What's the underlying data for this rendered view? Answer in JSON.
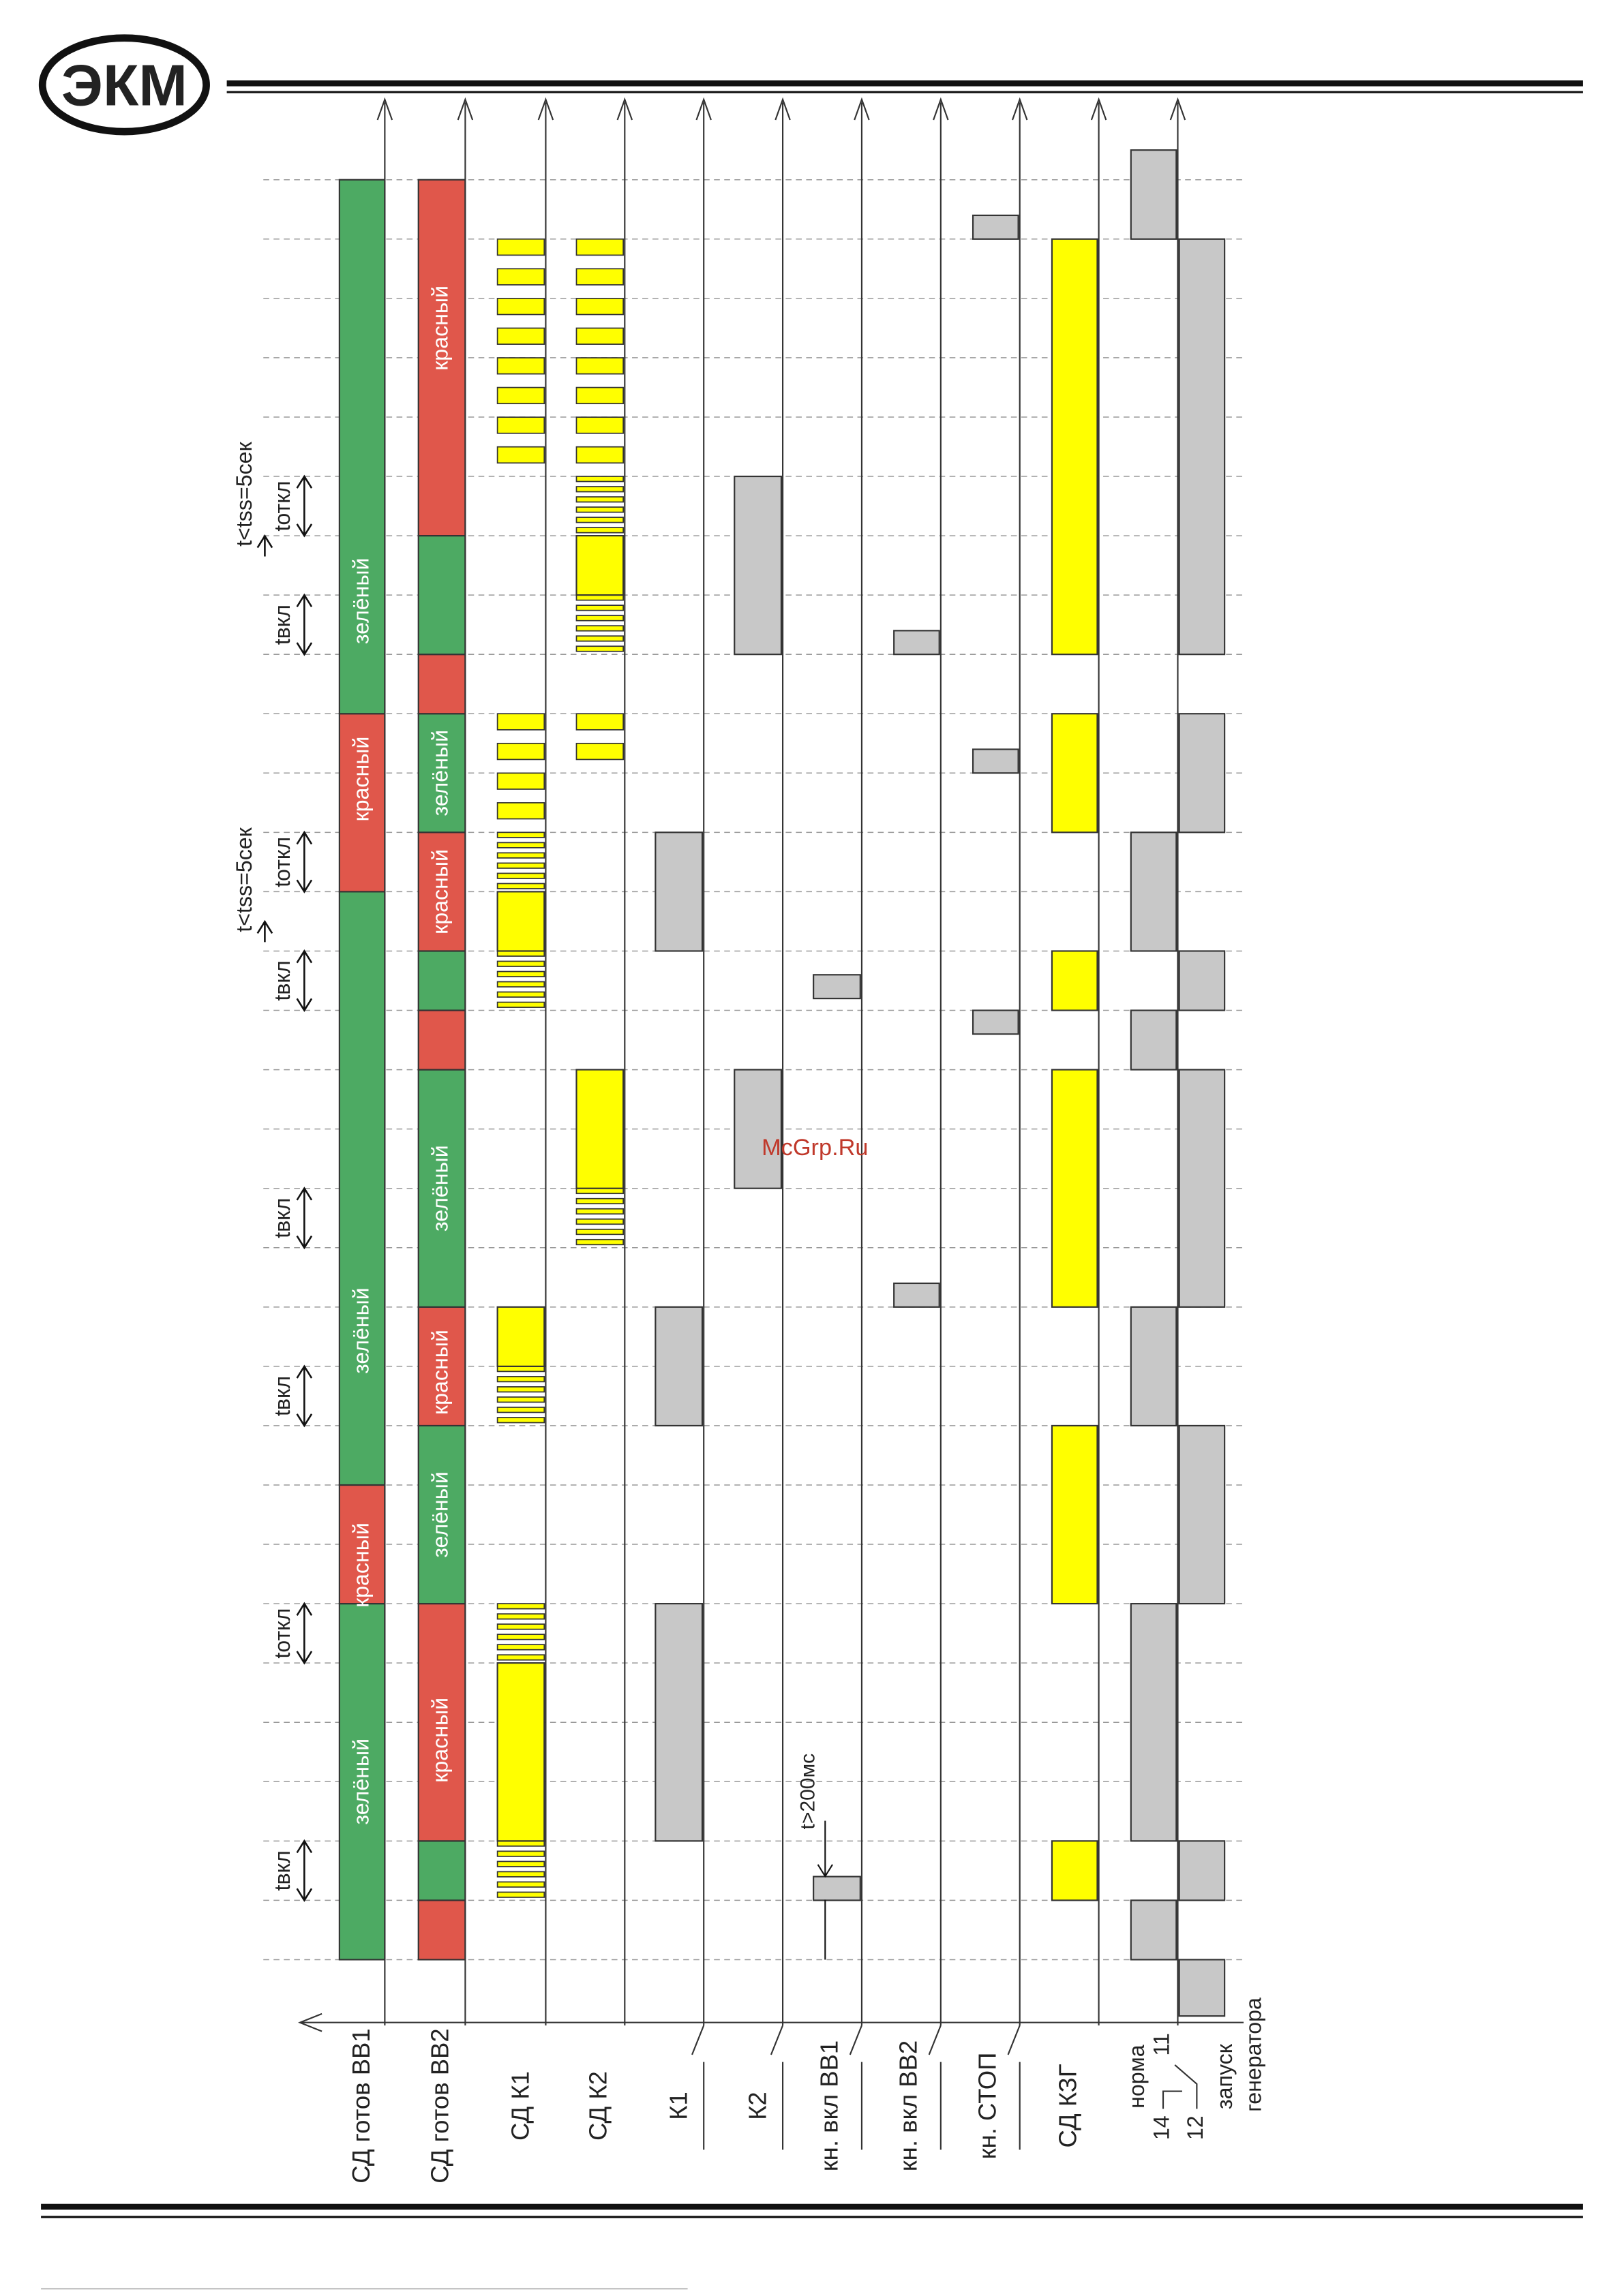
{
  "logo": "ЭКМ",
  "watermark": "McGrp.Ru",
  "row_labels": [
    "СД готов ВВ1",
    "СД готов ВВ2",
    "СД К1",
    "СД К2",
    "К1",
    "К2",
    "кн. вкл ВВ1",
    "кн. вкл ВВ2",
    "кн. СТОП",
    "СД КЗГ"
  ],
  "contact_labels": {
    "norm": "норма",
    "pins": [
      "14",
      "11",
      "12"
    ],
    "start": [
      "запуск",
      "генератора"
    ]
  },
  "state_labels": [
    "зелёный",
    "красный",
    "зелёный",
    "красный",
    "зелёный",
    "красный",
    "зелёный",
    "красный",
    "зелёный",
    "красный",
    "зелёный",
    "красный"
  ],
  "timing_labels": [
    "tвкл",
    "tоткл",
    "tвкл",
    "tвкл",
    "tвкл",
    "tоткл",
    "tвкл",
    "tоткл"
  ],
  "period_labels": [
    "t<tss=5сек",
    "t<tss=5сек"
  ],
  "pulse_note": "t>200мс"
}
